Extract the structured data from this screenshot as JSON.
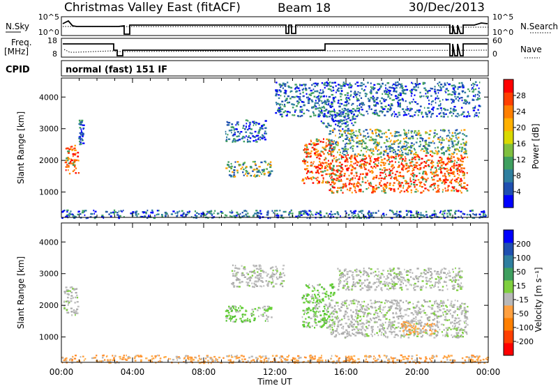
{
  "header": {
    "station": "Christmas Valley East (fitACF)",
    "beam": "Beam 18",
    "date": "30/Dec/2013"
  },
  "status_panels": {
    "nsky_label": "N.Sky",
    "nsky_ticks": [
      "10^5",
      "10^0"
    ],
    "nsearch_label": "N.Search",
    "nsearch_ticks": [
      "10^5",
      "10^0"
    ],
    "freq_label": "Freq.",
    "freq_unit": "[MHz]",
    "freq_ticks": [
      "18",
      "8"
    ],
    "nave_label": "Nave",
    "nave_ticks": [
      "60",
      "0"
    ],
    "cpid_label": "CPID",
    "cpid_value": "normal (fast) 151 IF"
  },
  "chart_data": [
    {
      "type": "heatmap",
      "id": "power",
      "ylabel": "Slant Range [km]",
      "xlabel": "",
      "yticks": [
        "1000",
        "2000",
        "3000",
        "4000"
      ],
      "ylim": [
        200,
        4600
      ],
      "xlim": [
        0,
        24
      ],
      "colorbar": {
        "label": "Power [dB]",
        "ticks": [
          "4",
          "8",
          "12",
          "16",
          "20",
          "24",
          "28"
        ],
        "colors": [
          "#0000ff",
          "#1f4fb0",
          "#2f7f9f",
          "#3f9f5f",
          "#7fbf3f",
          "#d9d900",
          "#ffb000",
          "#ff7f00",
          "#ff3f00",
          "#ff0000"
        ]
      },
      "scatter_regions": [
        {
          "t0": 0.15,
          "t1": 0.95,
          "r0": 1600,
          "r1": 2500,
          "value": "high"
        },
        {
          "t0": 0.95,
          "t1": 1.2,
          "r0": 2500,
          "r1": 3300,
          "value": "low"
        },
        {
          "t0": 9.2,
          "t1": 11.5,
          "r0": 2600,
          "r1": 3300,
          "value": "low"
        },
        {
          "t0": 9.2,
          "t1": 11.8,
          "r0": 1500,
          "r1": 2000,
          "value": "mid"
        },
        {
          "t0": 13.5,
          "t1": 15.3,
          "r0": 1300,
          "r1": 2700,
          "value": "high"
        },
        {
          "t0": 15.0,
          "t1": 22.8,
          "r0": 1000,
          "r1": 2200,
          "value": "high"
        },
        {
          "t0": 15.0,
          "t1": 22.8,
          "r0": 2200,
          "r1": 3000,
          "value": "mid"
        },
        {
          "t0": 14.5,
          "t1": 16.5,
          "r0": 3000,
          "r1": 3600,
          "value": "low"
        },
        {
          "t0": 12.0,
          "t1": 23.5,
          "r0": 3400,
          "r1": 4500,
          "value": "low"
        },
        {
          "t0": 0.0,
          "t1": 24.0,
          "r0": 200,
          "r1": 450,
          "value": "low"
        }
      ]
    },
    {
      "type": "heatmap",
      "id": "velocity",
      "ylabel": "Slant Range [km]",
      "xlabel": "Time UT",
      "xticks": [
        "00:00",
        "04:00",
        "08:00",
        "12:00",
        "16:00",
        "20:00",
        "00:00"
      ],
      "yticks": [
        "1000",
        "2000",
        "3000",
        "4000"
      ],
      "ylim": [
        200,
        4600
      ],
      "xlim": [
        0,
        24
      ],
      "colorbar": {
        "label": "Velocity [m s⁻¹]",
        "ticks": [
          "200",
          "100",
          "50",
          "15",
          "-15",
          "-50",
          "-100",
          "-200"
        ],
        "colors": [
          "#0000ff",
          "#1f4fb0",
          "#2f7f9f",
          "#3f9f5f",
          "#7fcf3f",
          "#b8b8b8",
          "#ffa040",
          "#ff7f00",
          "#ff3f00",
          "#ff0000"
        ]
      },
      "scatter_regions": [
        {
          "t0": 0.1,
          "t1": 0.9,
          "r0": 1700,
          "r1": 2600,
          "value": "grey"
        },
        {
          "t0": 9.2,
          "t1": 11.8,
          "r0": 1500,
          "r1": 2000,
          "value": "green"
        },
        {
          "t0": 9.5,
          "t1": 12.5,
          "r0": 2600,
          "r1": 3300,
          "value": "grey"
        },
        {
          "t0": 13.5,
          "t1": 15.3,
          "r0": 1300,
          "r1": 2700,
          "value": "green"
        },
        {
          "t0": 15.0,
          "t1": 22.8,
          "r0": 1000,
          "r1": 2200,
          "value": "grey"
        },
        {
          "t0": 15.5,
          "t1": 22.5,
          "r0": 2500,
          "r1": 3200,
          "value": "grey"
        },
        {
          "t0": 19.0,
          "t1": 21.0,
          "r0": 1100,
          "r1": 1500,
          "value": "orange"
        },
        {
          "t0": 0.0,
          "t1": 24.0,
          "r0": 200,
          "r1": 450,
          "value": "orange"
        }
      ]
    }
  ]
}
